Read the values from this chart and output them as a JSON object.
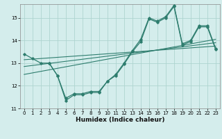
{
  "xlabel": "Humidex (Indice chaleur)",
  "background_color": "#d4edec",
  "grid_color": "#aed4d0",
  "line_color": "#2e7d6e",
  "xlim": [
    -0.5,
    23.5
  ],
  "ylim": [
    11.0,
    15.6
  ],
  "yticks": [
    11,
    12,
    13,
    14,
    15
  ],
  "xticks": [
    0,
    1,
    2,
    3,
    4,
    5,
    6,
    7,
    8,
    9,
    10,
    11,
    12,
    13,
    14,
    15,
    16,
    17,
    18,
    19,
    20,
    21,
    22,
    23
  ],
  "series1_x": [
    0,
    1,
    2,
    3,
    4,
    5,
    6,
    7,
    8,
    9,
    10,
    11,
    12,
    13,
    14,
    15,
    16,
    17,
    18,
    19,
    20,
    21,
    22,
    23
  ],
  "series1_y": [
    13.4,
    13.2,
    13.0,
    13.0,
    12.45,
    11.45,
    11.65,
    11.65,
    11.75,
    11.75,
    12.2,
    12.5,
    13.0,
    13.55,
    14.05,
    15.0,
    14.85,
    15.05,
    15.55,
    13.85,
    14.0,
    14.65,
    14.65,
    13.65
  ],
  "series2_x": [
    3,
    4,
    5,
    6,
    7,
    8,
    9,
    10,
    11,
    12,
    13,
    14,
    15,
    16,
    17,
    18,
    19,
    20,
    21,
    22,
    23
  ],
  "series2_y": [
    13.0,
    12.45,
    11.35,
    11.6,
    11.6,
    11.7,
    11.7,
    12.2,
    12.45,
    12.95,
    13.5,
    13.95,
    14.95,
    14.8,
    15.0,
    15.5,
    13.8,
    13.95,
    14.6,
    14.6,
    13.6
  ],
  "trend1_x": [
    0,
    23
  ],
  "trend1_y": [
    13.15,
    13.75
  ],
  "trend2_x": [
    0,
    23
  ],
  "trend2_y": [
    12.85,
    13.9
  ],
  "trend3_x": [
    0,
    23
  ],
  "trend3_y": [
    12.5,
    14.05
  ]
}
